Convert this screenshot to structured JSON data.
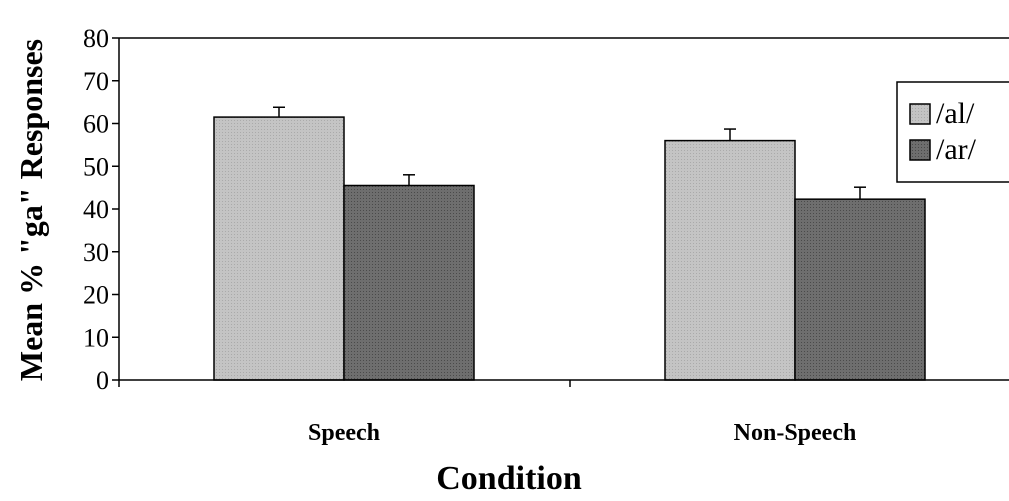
{
  "chart_data": {
    "type": "bar",
    "categories": [
      "Speech",
      "Non-Speech"
    ],
    "series": [
      {
        "name": "/al/",
        "values": [
          61.5,
          56
        ],
        "errors": [
          2.3,
          2.7
        ],
        "color": "#c0c0c0"
      },
      {
        "name": "/ar/",
        "values": [
          45.5,
          42.3
        ],
        "errors": [
          2.5,
          2.8
        ],
        "color": "#6b6b6b"
      }
    ],
    "xlabel": "Condition",
    "ylabel": "Mean % \"ga\" Responses",
    "ylim": [
      0,
      80
    ],
    "yticks": [
      "0",
      "10",
      "20",
      "30",
      "40",
      "50",
      "60",
      "70",
      "80"
    ],
    "grid": false,
    "legend_position": "top-right"
  }
}
